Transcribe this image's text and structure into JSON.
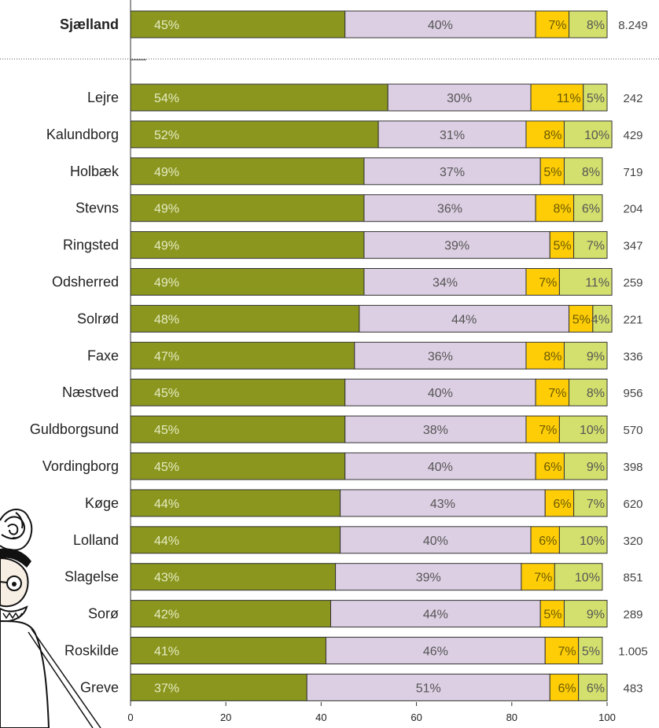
{
  "chart_data": {
    "type": "bar",
    "orientation": "horizontal",
    "stacked": true,
    "percent_stacked": true,
    "xlim": [
      0,
      100
    ],
    "x_ticks": [
      "0",
      "20",
      "40",
      "60",
      "80",
      "100"
    ],
    "grid": false,
    "legend": "none",
    "summary_row": {
      "category": "Sjælland",
      "values": [
        45,
        40,
        7,
        8
      ],
      "labels": [
        "45%",
        "40%",
        "7%",
        "8%"
      ],
      "n": "8.249"
    },
    "rows": [
      {
        "category": "Lejre",
        "values": [
          54,
          30,
          11,
          5
        ],
        "labels": [
          "54%",
          "30%",
          "11%",
          "5%"
        ],
        "n": "242"
      },
      {
        "category": "Kalundborg",
        "values": [
          52,
          31,
          8,
          10
        ],
        "labels": [
          "52%",
          "31%",
          "8%",
          "10%"
        ],
        "n": "429"
      },
      {
        "category": "Holbæk",
        "values": [
          49,
          37,
          5,
          8
        ],
        "labels": [
          "49%",
          "37%",
          "5%",
          "8%"
        ],
        "n": "719"
      },
      {
        "category": "Stevns",
        "values": [
          49,
          36,
          8,
          6
        ],
        "labels": [
          "49%",
          "36%",
          "8%",
          "6%"
        ],
        "n": "204"
      },
      {
        "category": "Ringsted",
        "values": [
          49,
          39,
          5,
          7
        ],
        "labels": [
          "49%",
          "39%",
          "5%",
          "7%"
        ],
        "n": "347"
      },
      {
        "category": "Odsherred",
        "values": [
          49,
          34,
          7,
          11
        ],
        "labels": [
          "49%",
          "34%",
          "7%",
          "11%"
        ],
        "n": "259"
      },
      {
        "category": "Solrød",
        "values": [
          48,
          44,
          5,
          4
        ],
        "labels": [
          "48%",
          "44%",
          "5%",
          "4%"
        ],
        "n": "221"
      },
      {
        "category": "Faxe",
        "values": [
          47,
          36,
          8,
          9
        ],
        "labels": [
          "47%",
          "36%",
          "8%",
          "9%"
        ],
        "n": "336"
      },
      {
        "category": "Næstved",
        "values": [
          45,
          40,
          7,
          8
        ],
        "labels": [
          "45%",
          "40%",
          "7%",
          "8%"
        ],
        "n": "956"
      },
      {
        "category": "Guldborgsund",
        "values": [
          45,
          38,
          7,
          10
        ],
        "labels": [
          "45%",
          "38%",
          "7%",
          "10%"
        ],
        "n": "570"
      },
      {
        "category": "Vordingborg",
        "values": [
          45,
          40,
          6,
          9
        ],
        "labels": [
          "45%",
          "40%",
          "6%",
          "9%"
        ],
        "n": "398"
      },
      {
        "category": "Køge",
        "values": [
          44,
          43,
          6,
          7
        ],
        "labels": [
          "44%",
          "43%",
          "6%",
          "7%"
        ],
        "n": "620"
      },
      {
        "category": "Lolland",
        "values": [
          44,
          40,
          6,
          10
        ],
        "labels": [
          "44%",
          "40%",
          "6%",
          "10%"
        ],
        "n": "320"
      },
      {
        "category": "Slagelse",
        "values": [
          43,
          39,
          7,
          10
        ],
        "labels": [
          "43%",
          "39%",
          "7%",
          "10%"
        ],
        "n": "851"
      },
      {
        "category": "Sorø",
        "values": [
          42,
          44,
          5,
          9
        ],
        "labels": [
          "42%",
          "44%",
          "5%",
          "9%"
        ],
        "n": "289"
      },
      {
        "category": "Roskilde",
        "values": [
          41,
          46,
          7,
          5
        ],
        "labels": [
          "41%",
          "46%",
          "7%",
          "5%"
        ],
        "n": "1.005"
      },
      {
        "category": "Greve",
        "values": [
          37,
          51,
          6,
          6
        ],
        "labels": [
          "37%",
          "51%",
          "6%",
          "6%"
        ],
        "n": "483"
      }
    ],
    "segment_colors": [
      "#8a961e",
      "#dccfe3",
      "#fecd06",
      "#d3e06d"
    ],
    "segment_text_colors": [
      "#e8ecc4",
      "#555555",
      "#6b5a00",
      "#555555"
    ]
  },
  "decoration": {
    "icon": "mascot-character-icon"
  }
}
